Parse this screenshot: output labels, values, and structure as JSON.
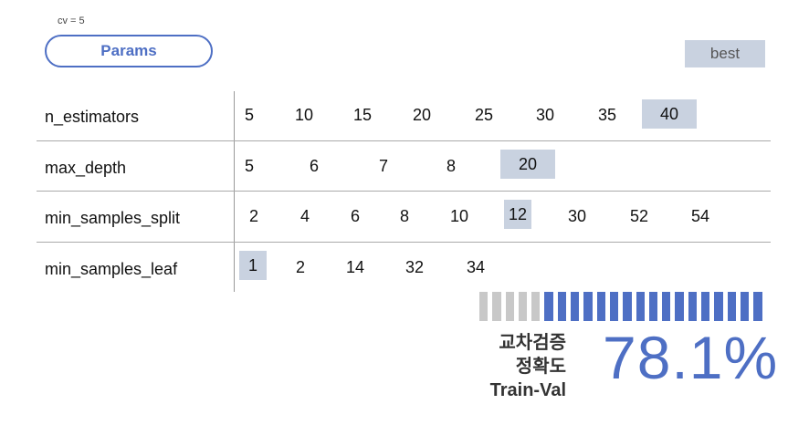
{
  "cv_label": "cv = 5",
  "params_label": "Params",
  "best_label": "best",
  "rows": [
    {
      "name": "n_estimators",
      "values": [
        "5",
        "10",
        "15",
        "20",
        "25",
        "30",
        "35",
        "40"
      ],
      "selected": "40"
    },
    {
      "name": "max_depth",
      "values": [
        "5",
        "6",
        "7",
        "8",
        "20"
      ],
      "selected": "20"
    },
    {
      "name": "min_samples_split",
      "values": [
        "2",
        "4",
        "6",
        "8",
        "10",
        "12",
        "30",
        "52",
        "54"
      ],
      "selected": "12"
    },
    {
      "name": "min_samples_leaf",
      "values": [
        "1",
        "2",
        "14",
        "32",
        "34"
      ],
      "selected": "1"
    }
  ],
  "metric": {
    "label_line1": "교차검증",
    "label_line2": "정확도",
    "label_line3": "Train-Val",
    "value": "78.1%",
    "fraction": 0.781
  },
  "colors": {
    "accent": "#4e6fc4",
    "highlight": "#c9d2e0",
    "bar_empty": "#c8c8c8"
  }
}
